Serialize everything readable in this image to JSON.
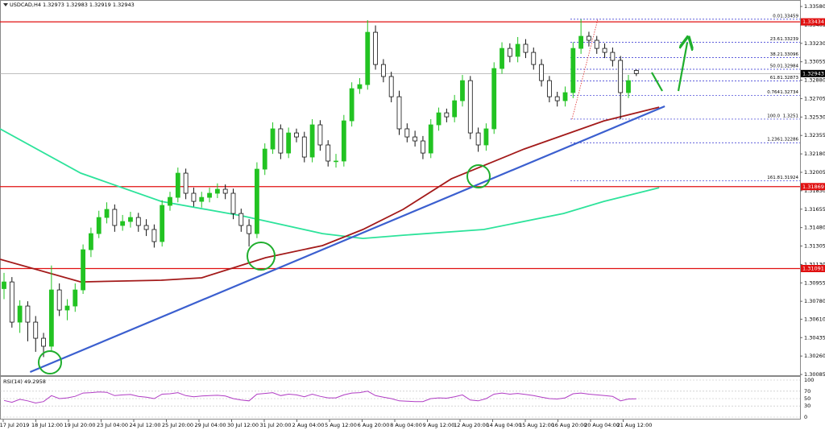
{
  "chart_data": {
    "type": "candlestick",
    "title": "USDCAD,H4 1.32973 1.32983 1.32919 1.32943",
    "xtick_labels": [
      "17 Jul 2019",
      "18 Jul 12:00",
      "19 Jul 20:00",
      "23 Jul 04:00",
      "24 Jul 12:00",
      "25 Jul 20:00",
      "29 Jul 04:00",
      "30 Jul 12:00",
      "31 Jul 20:00",
      "2 Aug 04:00",
      "5 Aug 12:00",
      "6 Aug 20:00",
      "8 Aug 04:00",
      "9 Aug 12:00",
      "12 Aug 20:00",
      "14 Aug 04:00",
      "15 Aug 12:00",
      "16 Aug 20:00",
      "20 Aug 04:00",
      "21 Aug 12:00"
    ],
    "ylim": [
      1.3007,
      1.33611
    ],
    "yticks": [
      {
        "value": 1.3358,
        "label": "1.33580"
      },
      1.33405,
      {
        "value": 1.3323,
        "label": "1.33230"
      },
      1.33055,
      {
        "value": 1.3288,
        "label": "1.32880"
      },
      1.32705,
      {
        "value": 1.3253,
        "label": "1.32530"
      },
      1.32355,
      {
        "value": 1.3218,
        "label": "1.32180"
      },
      1.32005,
      {
        "value": 1.3183,
        "label": "1.31830"
      },
      1.31655,
      {
        "value": 1.3148,
        "label": "1.31480"
      },
      1.31305,
      {
        "value": 1.3113,
        "label": "1.31130"
      },
      1.30955,
      {
        "value": 1.3078,
        "label": "1.30780"
      },
      {
        "value": 1.3061,
        "label": "1.30610"
      },
      1.30435,
      {
        "value": 1.3026,
        "label": "1.30260"
      },
      1.30085
    ],
    "up_color": "#22c322",
    "down_color": "#111111",
    "ohlc": [
      [
        1.309,
        1.3105,
        1.308,
        1.30964
      ],
      [
        1.30964,
        1.3101,
        1.3053,
        1.30582
      ],
      [
        1.30582,
        1.3079,
        1.3048,
        1.30735
      ],
      [
        1.30735,
        1.3078,
        1.304,
        1.30582
      ],
      [
        1.30582,
        1.3064,
        1.303,
        1.30429
      ],
      [
        1.30429,
        1.3048,
        1.3025,
        1.30353
      ],
      [
        1.30353,
        1.3112,
        1.303,
        1.30888
      ],
      [
        1.30888,
        1.3095,
        1.3064,
        1.30697
      ],
      [
        1.30697,
        1.308,
        1.306,
        1.30735
      ],
      [
        1.30735,
        1.3095,
        1.3068,
        1.30888
      ],
      [
        1.30888,
        1.3132,
        1.3085,
        1.3127
      ],
      [
        1.3127,
        1.3148,
        1.312,
        1.31423
      ],
      [
        1.31423,
        1.3164,
        1.3138,
        1.31576
      ],
      [
        1.31576,
        1.3172,
        1.3152,
        1.31653
      ],
      [
        1.31653,
        1.317,
        1.3144,
        1.315
      ],
      [
        1.315,
        1.316,
        1.3145,
        1.31538
      ],
      [
        1.31538,
        1.3163,
        1.3148,
        1.31576
      ],
      [
        1.31576,
        1.3162,
        1.3144,
        1.315
      ],
      [
        1.315,
        1.3156,
        1.314,
        1.31462
      ],
      [
        1.31462,
        1.3151,
        1.3129,
        1.31347
      ],
      [
        1.31347,
        1.3174,
        1.313,
        1.31691
      ],
      [
        1.31691,
        1.3182,
        1.3164,
        1.31767
      ],
      [
        1.31767,
        1.3205,
        1.3172,
        1.31997
      ],
      [
        1.31997,
        1.3204,
        1.3175,
        1.31806
      ],
      [
        1.31806,
        1.3186,
        1.3168,
        1.31729
      ],
      [
        1.31729,
        1.3182,
        1.3167,
        1.31767
      ],
      [
        1.31767,
        1.3186,
        1.3172,
        1.31806
      ],
      [
        1.31806,
        1.319,
        1.3176,
        1.31844
      ],
      [
        1.31844,
        1.3189,
        1.3175,
        1.31806
      ],
      [
        1.31806,
        1.3185,
        1.3156,
        1.31614
      ],
      [
        1.31614,
        1.3166,
        1.3144,
        1.315
      ],
      [
        1.315,
        1.3156,
        1.313,
        1.31423
      ],
      [
        1.31423,
        1.321,
        1.3138,
        1.32035
      ],
      [
        1.32035,
        1.3228,
        1.3198,
        1.32226
      ],
      [
        1.32226,
        1.3248,
        1.3218,
        1.32418
      ],
      [
        1.32418,
        1.3246,
        1.3213,
        1.32188
      ],
      [
        1.32188,
        1.3243,
        1.3214,
        1.32379
      ],
      [
        1.32379,
        1.3242,
        1.3229,
        1.32341
      ],
      [
        1.32341,
        1.3239,
        1.321,
        1.3215
      ],
      [
        1.3215,
        1.3251,
        1.321,
        1.32456
      ],
      [
        1.32456,
        1.325,
        1.3221,
        1.32265
      ],
      [
        1.32265,
        1.3231,
        1.3206,
        1.32112
      ],
      [
        1.32112,
        1.3218,
        1.3205,
        1.32112
      ],
      [
        1.32112,
        1.3255,
        1.3206,
        1.32494
      ],
      [
        1.32494,
        1.3286,
        1.3244,
        1.328
      ],
      [
        1.328,
        1.329,
        1.3275,
        1.32838
      ],
      [
        1.32838,
        1.3345,
        1.3279,
        1.33335
      ],
      [
        1.33335,
        1.334,
        1.3298,
        1.33029
      ],
      [
        1.33029,
        1.3308,
        1.3286,
        1.32915
      ],
      [
        1.32915,
        1.3296,
        1.3267,
        1.32723
      ],
      [
        1.32723,
        1.3278,
        1.3236,
        1.32418
      ],
      [
        1.32418,
        1.3247,
        1.3229,
        1.32341
      ],
      [
        1.32341,
        1.324,
        1.3225,
        1.32303
      ],
      [
        1.32303,
        1.3235,
        1.3213,
        1.32188
      ],
      [
        1.32188,
        1.3251,
        1.3214,
        1.32456
      ],
      [
        1.32456,
        1.3262,
        1.324,
        1.3257
      ],
      [
        1.3257,
        1.3261,
        1.3248,
        1.32532
      ],
      [
        1.32532,
        1.3274,
        1.3248,
        1.32685
      ],
      [
        1.32685,
        1.3293,
        1.3263,
        1.32876
      ],
      [
        1.32876,
        1.3292,
        1.3232,
        1.32379
      ],
      [
        1.32379,
        1.3243,
        1.322,
        1.32265
      ],
      [
        1.32265,
        1.3247,
        1.3221,
        1.32418
      ],
      [
        1.32418,
        1.3305,
        1.3237,
        1.32991
      ],
      [
        1.32991,
        1.3324,
        1.3294,
        1.33182
      ],
      [
        1.33182,
        1.3323,
        1.3305,
        1.33106
      ],
      [
        1.33106,
        1.3329,
        1.3305,
        1.33221
      ],
      [
        1.33221,
        1.3327,
        1.3309,
        1.33144
      ],
      [
        1.33144,
        1.3319,
        1.3298,
        1.33029
      ],
      [
        1.33029,
        1.3308,
        1.3282,
        1.32876
      ],
      [
        1.32876,
        1.3292,
        1.3267,
        1.32723
      ],
      [
        1.32723,
        1.3277,
        1.3263,
        1.32685
      ],
      [
        1.32685,
        1.3282,
        1.3263,
        1.32762
      ],
      [
        1.32762,
        1.3324,
        1.3271,
        1.33182
      ],
      [
        1.33182,
        1.33459,
        1.3313,
        1.33297
      ],
      [
        1.33297,
        1.3334,
        1.332,
        1.33259
      ],
      [
        1.33259,
        1.333,
        1.3313,
        1.33182
      ],
      [
        1.33182,
        1.3323,
        1.3309,
        1.33144
      ],
      [
        1.33144,
        1.3319,
        1.3301,
        1.33068
      ],
      [
        1.33068,
        1.3311,
        1.3251,
        1.32762
      ],
      [
        1.32762,
        1.3293,
        1.3271,
        1.32876
      ],
      [
        1.32973,
        1.32983,
        1.32919,
        1.32943
      ]
    ],
    "moving_averages": [
      {
        "color": "#2de39b",
        "x": [
          -0.5,
          9.7,
          19.9,
          30.1,
          40.3,
          45.4,
          50.5,
          60.7,
          70.8,
          75.9,
          82.9
        ],
        "values": [
          1.32418,
          1.31997,
          1.31729,
          1.31592,
          1.31423,
          1.31377,
          1.31408,
          1.31462,
          1.31614,
          1.31729,
          1.31859
        ]
      },
      {
        "color": "#a31a1a",
        "x": [
          -0.5,
          9.7,
          19.9,
          25.0,
          33.1,
          40.3,
          45.4,
          50.5,
          56.6,
          65.8,
          75.9,
          82.9
        ],
        "values": [
          1.31179,
          1.30964,
          1.3098,
          1.31003,
          1.31194,
          1.31309,
          1.31462,
          1.31653,
          1.31943,
          1.32226,
          1.32494,
          1.32624
        ]
      }
    ],
    "trendline": {
      "color": "#3b5fcf",
      "x": [
        3.3,
        83.6
      ],
      "values": [
        1.30108,
        1.32632
      ]
    },
    "levels": [
      {
        "value": 1.33434,
        "color": "#e01010"
      },
      {
        "value": 1.31869,
        "color": "#e01010"
      },
      {
        "value": 1.31091,
        "color": "#e01010"
      }
    ],
    "current_price": 1.32943,
    "fibonacci": {
      "color": "#2a2ad0",
      "ratios": [
        "0.0",
        "23.6",
        "38.2",
        "50.0",
        "61.8",
        "0.764",
        "100.0",
        "1.236",
        "161.8"
      ],
      "prices": [
        1.33459,
        1.33239,
        1.33096,
        1.32984,
        1.32873,
        1.32734,
        1.3251,
        1.32286,
        1.31924
      ]
    },
    "rsi": {
      "label": "RSI(14) 49.2958",
      "ylim": [
        0,
        100
      ],
      "yticks": [
        100,
        70,
        50,
        30,
        0
      ],
      "color": "#b03cc4",
      "values": [
        45,
        40,
        48,
        44,
        38,
        42,
        58,
        50,
        52,
        56,
        65,
        66,
        68,
        67,
        58,
        60,
        61,
        56,
        54,
        50,
        62,
        63,
        66,
        58,
        55,
        57,
        58,
        59,
        57,
        50,
        46,
        44,
        62,
        64,
        66,
        58,
        62,
        60,
        55,
        62,
        56,
        52,
        52,
        60,
        65,
        66,
        70,
        58,
        54,
        50,
        44,
        43,
        42,
        42,
        50,
        52,
        51,
        55,
        60,
        46,
        44,
        50,
        62,
        65,
        62,
        64,
        61,
        58,
        54,
        50,
        49,
        52,
        63,
        65,
        62,
        60,
        58,
        56,
        44,
        49,
        49.2958
      ]
    }
  }
}
